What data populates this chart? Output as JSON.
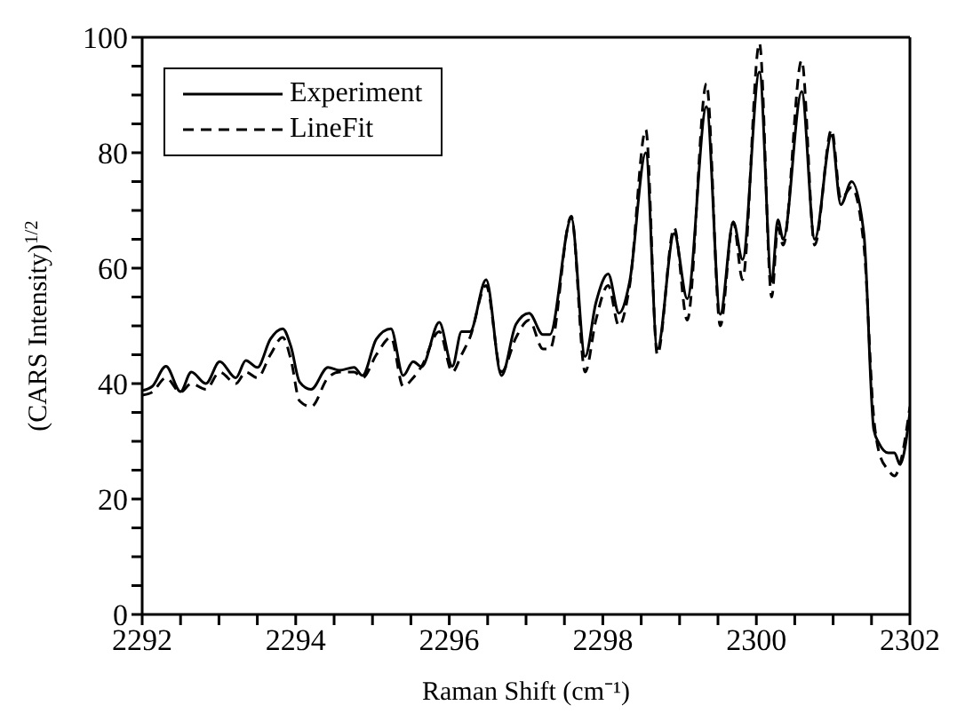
{
  "chart_data": {
    "type": "line",
    "xlabel": "Raman Shift (cm⁻¹)",
    "ylabel": "(CARS Intensity)$^{1/2}$",
    "xlim": [
      2292,
      2302
    ],
    "ylim": [
      0,
      100
    ],
    "xticks": [
      2292,
      {
        "value": 2292.5,
        "label": null
      },
      {
        "value": 2293,
        "label": null
      },
      {
        "value": 2293.5,
        "label": null
      },
      2294,
      {
        "value": 2294.5,
        "label": null
      },
      {
        "value": 2295,
        "label": null
      },
      {
        "value": 2295.5,
        "label": null
      },
      2296,
      {
        "value": 2296.5,
        "label": null
      },
      {
        "value": 2297,
        "label": null
      },
      {
        "value": 2297.5,
        "label": null
      },
      2298,
      {
        "value": 2298.5,
        "label": null
      },
      {
        "value": 2299,
        "label": null
      },
      {
        "value": 2299.5,
        "label": null
      },
      2300,
      {
        "value": 2300.5,
        "label": null
      },
      {
        "value": 2301,
        "label": null
      },
      {
        "value": 2301.5,
        "label": null
      },
      2302
    ],
    "yticks": [
      0,
      {
        "value": 5,
        "label": null
      },
      {
        "value": 10,
        "label": null
      },
      {
        "value": 15,
        "label": null
      },
      20,
      {
        "value": 25,
        "label": null
      },
      {
        "value": 30,
        "label": null
      },
      {
        "value": 35,
        "label": null
      },
      40,
      {
        "value": 45,
        "label": null
      },
      {
        "value": 50,
        "label": null
      },
      {
        "value": 55,
        "label": null
      },
      60,
      {
        "value": 65,
        "label": null
      },
      {
        "value": 70,
        "label": null
      },
      {
        "value": 75,
        "label": null
      },
      80,
      {
        "value": 85,
        "label": null
      },
      {
        "value": 90,
        "label": null
      },
      {
        "value": 95,
        "label": null
      },
      100
    ],
    "grid": false,
    "legend": "top left",
    "marker": "none",
    "series": [
      {
        "name": "Experiment",
        "color": "#000000",
        "line_style": "solid",
        "x": [
          2292,
          2292.13,
          2292.31,
          2292.5,
          2292.64,
          2292.83,
          2293.01,
          2293.22,
          2293.35,
          2293.5,
          2293.67,
          2293.83,
          2293.94,
          2294.05,
          2294.2,
          2294.42,
          2294.57,
          2294.76,
          2294.87,
          2295.05,
          2295.24,
          2295.4,
          2295.53,
          2295.64,
          2295.87,
          2296.04,
          2296.16,
          2296.27,
          2296.48,
          2296.68,
          2296.87,
          2297.04,
          2297.22,
          2297.31,
          2297.59,
          2297.77,
          2297.91,
          2298.07,
          2298.21,
          2298.35,
          2298.56,
          2298.71,
          2298.93,
          2299.1,
          2299.35,
          2299.53,
          2299.7,
          2299.82,
          2300.04,
          2300.2,
          2300.28,
          2300.35,
          2300.59,
          2300.76,
          2300.98,
          2301.1,
          2301.24,
          2301.4,
          2301.53,
          2301.6,
          2301.72,
          2301.8,
          2301.87,
          2302
        ],
        "values": [
          38.8,
          39.5,
          43,
          38.6,
          42,
          40,
          43.8,
          41,
          44,
          42.8,
          47.7,
          49.5,
          46.3,
          40.3,
          39,
          42.8,
          42.3,
          42.8,
          41.4,
          47.7,
          49.5,
          41.4,
          43.8,
          42.9,
          50.6,
          43,
          49,
          49,
          58,
          41.4,
          50.3,
          52.2,
          48.5,
          48.5,
          68.6,
          44.7,
          54,
          59,
          52.2,
          57.7,
          80,
          46,
          66,
          54.7,
          88,
          52,
          68,
          61.5,
          94,
          57.7,
          68.4,
          65,
          90.6,
          65,
          83,
          71,
          75,
          66,
          32,
          29.6,
          28,
          28,
          26,
          35
        ]
      },
      {
        "name": "LineFit",
        "color": "#000000",
        "line_style": "dashed",
        "x": [
          2292,
          2292.13,
          2292.31,
          2292.5,
          2292.64,
          2292.83,
          2293.01,
          2293.22,
          2293.35,
          2293.5,
          2293.67,
          2293.83,
          2293.94,
          2294.05,
          2294.2,
          2294.42,
          2294.57,
          2294.76,
          2294.87,
          2295.05,
          2295.24,
          2295.4,
          2295.53,
          2295.64,
          2295.87,
          2296.04,
          2296.16,
          2296.27,
          2296.48,
          2296.68,
          2296.87,
          2297.04,
          2297.22,
          2297.31,
          2297.59,
          2297.77,
          2297.91,
          2298.07,
          2298.21,
          2298.35,
          2298.56,
          2298.71,
          2298.93,
          2299.1,
          2299.35,
          2299.53,
          2299.7,
          2299.82,
          2300.04,
          2300.2,
          2300.28,
          2300.35,
          2300.59,
          2300.76,
          2300.98,
          2301.1,
          2301.24,
          2301.4,
          2301.53,
          2301.6,
          2301.72,
          2301.8,
          2301.87,
          2302
        ],
        "values": [
          38,
          38.5,
          41,
          38.5,
          40,
          39,
          42,
          40,
          42,
          41,
          45,
          48,
          44,
          37,
          36,
          41,
          42,
          42,
          41,
          45,
          48,
          39.5,
          41,
          43,
          49,
          42,
          45,
          48,
          57,
          42,
          48,
          51,
          46,
          46,
          69,
          42,
          51,
          57,
          50,
          57,
          84,
          45,
          67,
          51,
          92,
          50,
          68,
          58,
          99,
          55,
          67,
          64,
          96,
          64,
          84,
          72,
          74,
          64,
          34,
          28,
          25,
          24,
          26,
          36
        ]
      }
    ]
  }
}
